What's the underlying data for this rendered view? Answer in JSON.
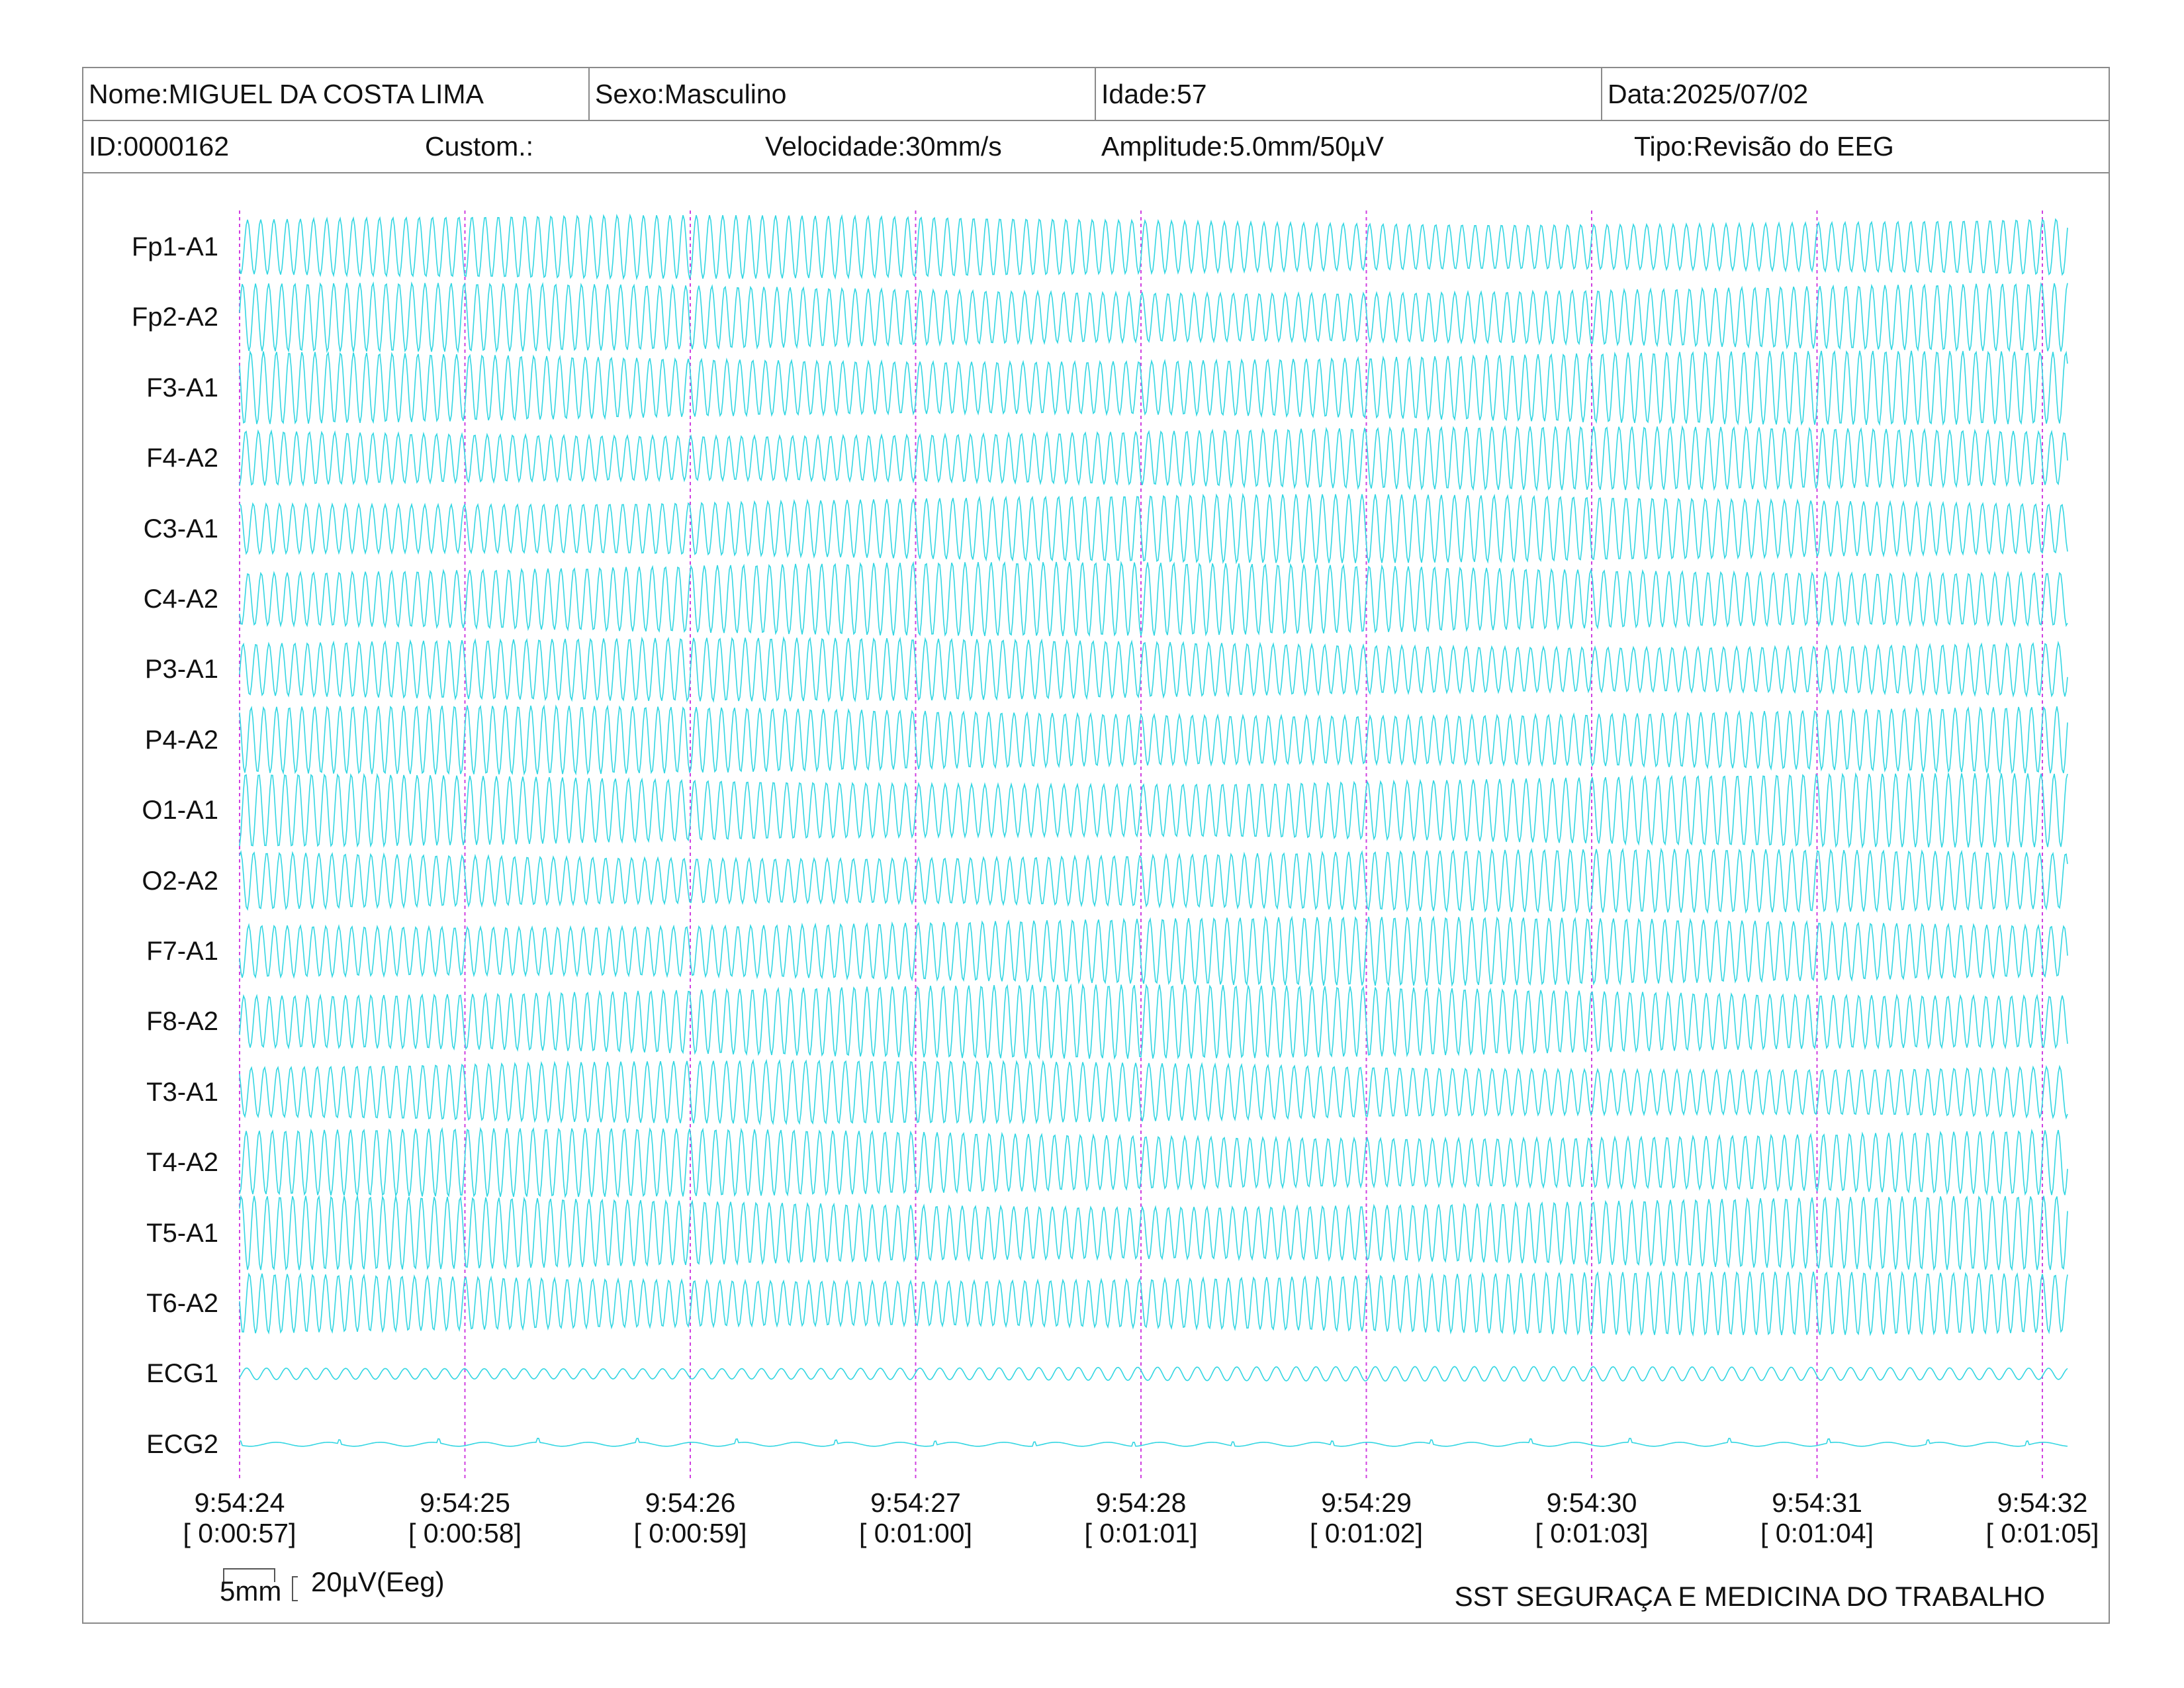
{
  "header": {
    "name": "Nome:MIGUEL DA COSTA LIMA",
    "sex": "Sexo:Masculino",
    "age": "Idade:57",
    "date": "Data:2025/07/02",
    "id": "ID:0000162",
    "custom": "Custom.:",
    "speed": "Velocidade:30mm/s",
    "amplitude": "Amplitude:5.0mm/50µV",
    "type": "Tipo:Revisão do EEG"
  },
  "channels": [
    "Fp1-A1",
    "Fp2-A2",
    "F3-A1",
    "F4-A2",
    "C3-A1",
    "C4-A2",
    "P3-A1",
    "P4-A2",
    "O1-A1",
    "O2-A2",
    "F7-A1",
    "F8-A2",
    "T3-A1",
    "T4-A2",
    "T5-A1",
    "T6-A2",
    "ECG1",
    "ECG2"
  ],
  "time_marks": [
    {
      "clock": "9:54:24",
      "elapsed": "[ 0:00:57]"
    },
    {
      "clock": "9:54:25",
      "elapsed": "[ 0:00:58]"
    },
    {
      "clock": "9:54:26",
      "elapsed": "[ 0:00:59]"
    },
    {
      "clock": "9:54:27",
      "elapsed": "[ 0:01:00]"
    },
    {
      "clock": "9:54:28",
      "elapsed": "[ 0:01:01]"
    },
    {
      "clock": "9:54:29",
      "elapsed": "[ 0:01:02]"
    },
    {
      "clock": "9:54:30",
      "elapsed": "[ 0:01:03]"
    },
    {
      "clock": "9:54:31",
      "elapsed": "[ 0:01:04]"
    },
    {
      "clock": "9:54:32",
      "elapsed": "[ 0:01:05]"
    }
  ],
  "scale": {
    "time_label": "5mm",
    "amp_label": "20µV(Eeg)"
  },
  "footer": {
    "organization": "SST SEGURAÇA E MEDICINA DO TRABALHO"
  },
  "colors": {
    "trace": "#33d6e2",
    "time_marker": "#d040e0",
    "border": "#8a8a8a"
  }
}
